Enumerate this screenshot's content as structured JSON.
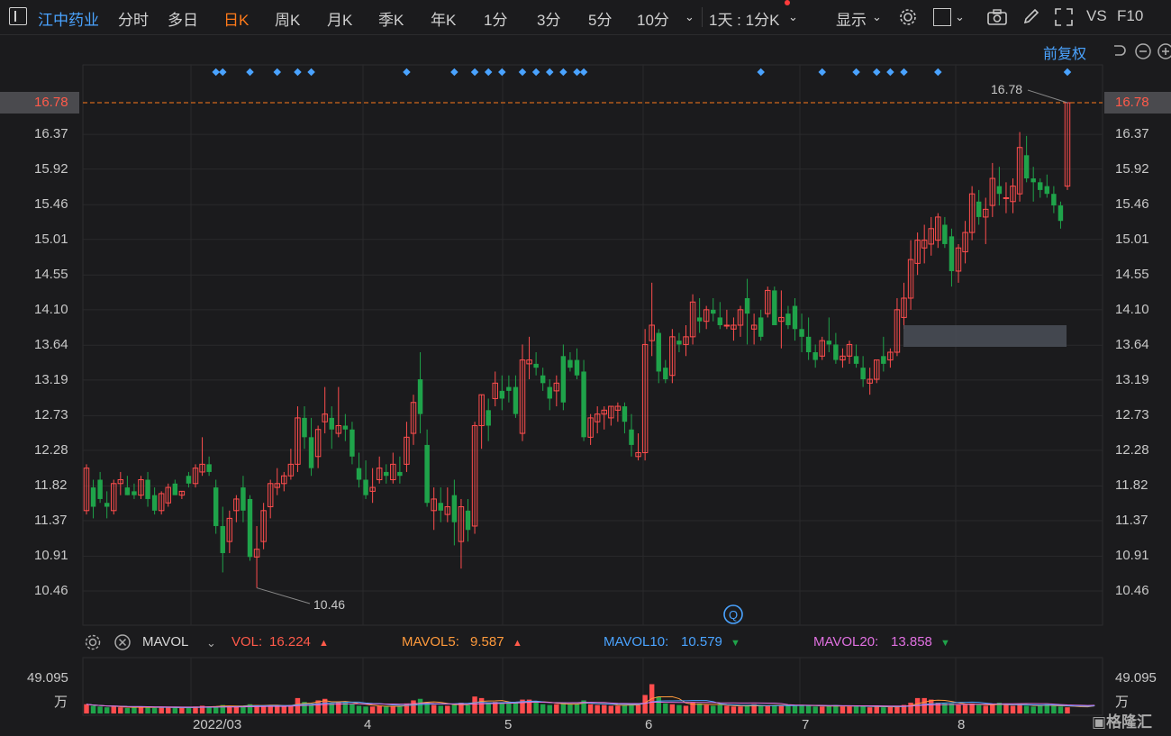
{
  "toolbar": {
    "stock_name": "江中药业",
    "periods": [
      "分时",
      "多日",
      "日K",
      "周K",
      "月K",
      "季K",
      "年K",
      "1分",
      "3分",
      "5分",
      "10分"
    ],
    "active_period": "日K",
    "interval_select": "1天 : 1分K",
    "display_label": "显示",
    "vs_label": "VS",
    "f10_label": "F10"
  },
  "adjust_label": "前复权",
  "price_axis": {
    "ticks": [
      "16.78",
      "16.37",
      "15.92",
      "15.46",
      "15.01",
      "14.55",
      "14.10",
      "13.64",
      "13.19",
      "12.73",
      "12.28",
      "11.82",
      "11.37",
      "10.91",
      "10.46"
    ],
    "highlight": "16.78"
  },
  "annotations": {
    "high": "16.78",
    "low": "10.46"
  },
  "indicator": {
    "name": "MAVOL",
    "vol_label": "VOL:",
    "vol_value": "16.224",
    "ma5_label": "MAVOL5:",
    "ma5_value": "9.587",
    "ma10_label": "MAVOL10:",
    "ma10_value": "10.579",
    "ma20_label": "MAVOL20:",
    "ma20_value": "13.858",
    "colors": {
      "vol": "#ff5a4a",
      "ma5": "#ff9a3c",
      "ma10": "#4aa3ff",
      "ma20": "#e070e0"
    }
  },
  "volume_axis": {
    "top": "49.095",
    "unit": "万"
  },
  "date_labels": [
    "2022/03",
    "4",
    "5",
    "6",
    "7",
    "8"
  ],
  "watermark": "格隆汇",
  "colors": {
    "up": "#ff4d4d",
    "down": "#1fa34a",
    "accent": "#ff7a1a",
    "link": "#4aa3ff"
  },
  "chart_data": {
    "type": "candlestick",
    "ylim": [
      10.25,
      16.92
    ],
    "ohlc": [
      [
        11.5,
        12.1,
        11.45,
        12.05
      ],
      [
        11.8,
        11.9,
        11.4,
        11.55
      ],
      [
        11.9,
        12.0,
        11.6,
        11.65
      ],
      [
        11.6,
        11.75,
        11.4,
        11.55
      ],
      [
        11.5,
        11.9,
        11.45,
        11.85
      ],
      [
        11.85,
        12.0,
        11.7,
        11.9
      ],
      [
        11.8,
        11.95,
        11.7,
        11.7
      ],
      [
        11.75,
        11.85,
        11.65,
        11.7
      ],
      [
        11.7,
        11.95,
        11.65,
        11.9
      ],
      [
        11.9,
        12.0,
        11.55,
        11.65
      ],
      [
        11.7,
        11.8,
        11.45,
        11.5
      ],
      [
        11.5,
        11.75,
        11.45,
        11.72
      ],
      [
        11.6,
        11.85,
        11.55,
        11.8
      ],
      [
        11.85,
        11.9,
        11.7,
        11.7
      ],
      [
        11.7,
        11.75,
        11.65,
        11.75
      ],
      [
        11.95,
        12.0,
        11.8,
        11.85
      ],
      [
        11.85,
        12.1,
        11.8,
        12.05
      ],
      [
        12.0,
        12.45,
        11.95,
        12.1
      ],
      [
        12.1,
        12.2,
        11.95,
        12.0
      ],
      [
        11.8,
        11.9,
        11.2,
        11.3
      ],
      [
        11.3,
        11.55,
        10.7,
        10.95
      ],
      [
        11.1,
        11.5,
        10.95,
        11.4
      ],
      [
        11.5,
        11.7,
        11.35,
        11.65
      ],
      [
        11.8,
        11.95,
        11.35,
        11.5
      ],
      [
        11.65,
        11.7,
        10.85,
        10.9
      ],
      [
        10.9,
        11.3,
        10.5,
        11.0
      ],
      [
        11.1,
        11.6,
        11.0,
        11.5
      ],
      [
        11.55,
        11.9,
        11.4,
        11.85
      ],
      [
        11.8,
        12.05,
        11.7,
        11.85
      ],
      [
        11.85,
        12.0,
        11.75,
        11.95
      ],
      [
        11.95,
        12.3,
        11.9,
        12.1
      ],
      [
        12.1,
        12.85,
        12.0,
        12.7
      ],
      [
        12.7,
        12.85,
        12.3,
        12.45
      ],
      [
        12.45,
        12.7,
        11.95,
        12.05
      ],
      [
        12.2,
        12.6,
        12.05,
        12.55
      ],
      [
        12.65,
        13.1,
        12.5,
        12.75
      ],
      [
        12.7,
        12.85,
        12.3,
        12.55
      ],
      [
        12.5,
        13.1,
        12.45,
        12.6
      ],
      [
        12.6,
        12.75,
        12.4,
        12.55
      ],
      [
        12.55,
        12.65,
        12.1,
        12.2
      ],
      [
        12.05,
        12.25,
        11.8,
        11.9
      ],
      [
        11.9,
        12.15,
        11.65,
        11.7
      ],
      [
        11.75,
        12.05,
        11.6,
        11.8
      ],
      [
        11.9,
        12.2,
        11.85,
        12.05
      ],
      [
        12.0,
        12.1,
        11.85,
        11.95
      ],
      [
        11.9,
        12.25,
        11.85,
        12.1
      ],
      [
        12.0,
        12.2,
        11.85,
        11.95
      ],
      [
        12.1,
        12.65,
        12.0,
        12.45
      ],
      [
        12.5,
        13.0,
        12.35,
        12.9
      ],
      [
        13.2,
        13.55,
        12.5,
        12.75
      ],
      [
        12.35,
        12.55,
        11.55,
        11.6
      ],
      [
        11.5,
        11.8,
        11.25,
        11.65
      ],
      [
        11.6,
        11.8,
        11.35,
        11.5
      ],
      [
        11.45,
        11.8,
        11.35,
        11.55
      ],
      [
        11.7,
        11.9,
        11.05,
        11.35
      ],
      [
        11.1,
        11.65,
        10.75,
        11.55
      ],
      [
        11.5,
        11.65,
        11.1,
        11.25
      ],
      [
        11.3,
        12.65,
        11.2,
        12.6
      ],
      [
        12.6,
        13.0,
        12.3,
        13.0
      ],
      [
        12.8,
        12.95,
        12.4,
        12.6
      ],
      [
        12.95,
        13.3,
        12.85,
        13.15
      ],
      [
        13.05,
        13.25,
        12.8,
        12.95
      ],
      [
        13.1,
        13.25,
        12.9,
        13.05
      ],
      [
        13.1,
        13.25,
        12.7,
        12.75
      ],
      [
        12.5,
        13.65,
        12.4,
        13.45
      ],
      [
        13.4,
        13.75,
        13.2,
        13.45
      ],
      [
        13.4,
        13.55,
        13.25,
        13.35
      ],
      [
        13.25,
        13.35,
        13.05,
        13.15
      ],
      [
        13.1,
        13.2,
        12.8,
        12.95
      ],
      [
        13.05,
        13.25,
        12.85,
        13.15
      ],
      [
        13.5,
        13.65,
        12.8,
        12.9
      ],
      [
        13.45,
        13.55,
        13.3,
        13.35
      ],
      [
        13.45,
        13.6,
        13.2,
        13.25
      ],
      [
        13.3,
        13.45,
        12.4,
        12.45
      ],
      [
        12.45,
        12.75,
        12.35,
        12.7
      ],
      [
        12.65,
        12.85,
        12.5,
        12.75
      ],
      [
        12.75,
        12.85,
        12.55,
        12.8
      ],
      [
        12.7,
        12.85,
        12.6,
        12.85
      ],
      [
        12.8,
        12.9,
        12.65,
        12.85
      ],
      [
        12.85,
        12.9,
        12.5,
        12.65
      ],
      [
        12.55,
        12.75,
        12.2,
        12.35
      ],
      [
        12.2,
        12.5,
        12.15,
        12.25
      ],
      [
        12.25,
        13.85,
        12.15,
        13.65
      ],
      [
        13.7,
        14.45,
        13.5,
        13.9
      ],
      [
        13.8,
        13.85,
        13.15,
        13.3
      ],
      [
        13.35,
        13.45,
        13.15,
        13.2
      ],
      [
        13.25,
        13.85,
        13.15,
        13.75
      ],
      [
        13.7,
        13.8,
        13.55,
        13.65
      ],
      [
        13.65,
        13.9,
        13.5,
        13.75
      ],
      [
        13.75,
        14.3,
        13.65,
        14.2
      ],
      [
        14.0,
        14.25,
        13.8,
        13.95
      ],
      [
        13.95,
        14.15,
        13.85,
        14.1
      ],
      [
        14.1,
        14.25,
        13.95,
        14.05
      ],
      [
        14.0,
        14.2,
        13.85,
        13.9
      ],
      [
        13.9,
        14.1,
        13.85,
        13.9
      ],
      [
        13.85,
        14.0,
        13.7,
        13.9
      ],
      [
        13.9,
        14.15,
        13.75,
        14.1
      ],
      [
        14.25,
        14.5,
        13.65,
        14.05
      ],
      [
        13.85,
        14.05,
        13.65,
        13.9
      ],
      [
        14.0,
        14.1,
        13.7,
        13.75
      ],
      [
        14.05,
        14.4,
        14.0,
        14.35
      ],
      [
        14.35,
        14.4,
        13.95,
        13.9
      ],
      [
        13.95,
        14.35,
        13.6,
        14.0
      ],
      [
        14.05,
        14.15,
        13.85,
        13.9
      ],
      [
        14.15,
        14.25,
        13.7,
        13.85
      ],
      [
        13.85,
        14.05,
        13.55,
        13.75
      ],
      [
        13.75,
        14.0,
        13.45,
        13.55
      ],
      [
        13.55,
        13.65,
        13.35,
        13.45
      ],
      [
        13.5,
        13.75,
        13.45,
        13.7
      ],
      [
        13.7,
        14.0,
        13.55,
        13.65
      ],
      [
        13.65,
        13.8,
        13.4,
        13.45
      ],
      [
        13.45,
        13.6,
        13.35,
        13.5
      ],
      [
        13.5,
        13.7,
        13.4,
        13.65
      ],
      [
        13.5,
        13.65,
        13.35,
        13.4
      ],
      [
        13.35,
        13.5,
        13.1,
        13.2
      ],
      [
        13.15,
        13.35,
        13.0,
        13.2
      ],
      [
        13.2,
        13.45,
        13.15,
        13.45
      ],
      [
        13.5,
        13.75,
        13.3,
        13.4
      ],
      [
        13.45,
        13.6,
        13.35,
        13.55
      ],
      [
        13.55,
        14.25,
        13.5,
        14.1
      ],
      [
        14.0,
        14.45,
        13.85,
        14.25
      ],
      [
        14.25,
        15.0,
        14.1,
        14.75
      ],
      [
        14.7,
        15.1,
        14.55,
        15.0
      ],
      [
        14.9,
        15.2,
        14.7,
        15.0
      ],
      [
        14.95,
        15.3,
        14.8,
        15.15
      ],
      [
        15.0,
        15.35,
        14.9,
        15.3
      ],
      [
        15.2,
        15.3,
        14.9,
        14.95
      ],
      [
        15.05,
        15.15,
        14.4,
        14.6
      ],
      [
        14.6,
        14.95,
        14.45,
        14.9
      ],
      [
        14.85,
        15.25,
        14.7,
        15.1
      ],
      [
        15.1,
        15.7,
        15.0,
        15.6
      ],
      [
        15.5,
        15.65,
        15.2,
        15.3
      ],
      [
        15.3,
        15.55,
        14.95,
        15.4
      ],
      [
        15.45,
        16.0,
        15.3,
        15.8
      ],
      [
        15.7,
        15.95,
        15.45,
        15.6
      ],
      [
        15.55,
        15.75,
        15.35,
        15.55
      ],
      [
        15.5,
        15.8,
        15.35,
        15.7
      ],
      [
        15.6,
        16.4,
        15.5,
        16.2
      ],
      [
        16.1,
        16.35,
        15.75,
        15.8
      ],
      [
        15.8,
        15.95,
        15.5,
        15.75
      ],
      [
        15.75,
        15.8,
        15.55,
        15.65
      ],
      [
        15.7,
        15.85,
        15.55,
        15.6
      ],
      [
        15.6,
        15.7,
        15.35,
        15.45
      ],
      [
        15.45,
        15.5,
        15.15,
        15.25
      ],
      [
        15.7,
        16.78,
        15.65,
        16.78
      ]
    ],
    "volume": {
      "ylim": [
        0,
        49.095
      ],
      "unit": "万",
      "series": [
        {
          "name": "VOL",
          "values": [
            12,
            10,
            9,
            8,
            9,
            8,
            7,
            8,
            9,
            8,
            7,
            8,
            8,
            7,
            7,
            8,
            9,
            10,
            9,
            9,
            11,
            10,
            9,
            10,
            12,
            11,
            10,
            11,
            10,
            9,
            11,
            20,
            15,
            12,
            17,
            19,
            13,
            15,
            14,
            12,
            10,
            9,
            9,
            10,
            9,
            10,
            9,
            13,
            17,
            19,
            15,
            11,
            10,
            10,
            12,
            14,
            11,
            22,
            20,
            14,
            15,
            13,
            13,
            14,
            18,
            18,
            14,
            12,
            11,
            12,
            14,
            12,
            12,
            17,
            12,
            11,
            11,
            10,
            10,
            11,
            13,
            11,
            24,
            38,
            22,
            13,
            12,
            11,
            10,
            14,
            13,
            11,
            10,
            11,
            10,
            9,
            9,
            10,
            12,
            10,
            10,
            11,
            10,
            11,
            11,
            10,
            10,
            9,
            9,
            10,
            11,
            9,
            9,
            9,
            10,
            8,
            9,
            8,
            9,
            9,
            11,
            14,
            20,
            20,
            18,
            14,
            13,
            13,
            11,
            11,
            13,
            11,
            10,
            11,
            14,
            11,
            10,
            12,
            10,
            9,
            10,
            12,
            10,
            9,
            8,
            8,
            9,
            9,
            16
          ]
        },
        {
          "name": "MAVOL5",
          "values": []
        },
        {
          "name": "MAVOL10",
          "values": []
        },
        {
          "name": "MAVOL20",
          "values": []
        }
      ]
    }
  }
}
